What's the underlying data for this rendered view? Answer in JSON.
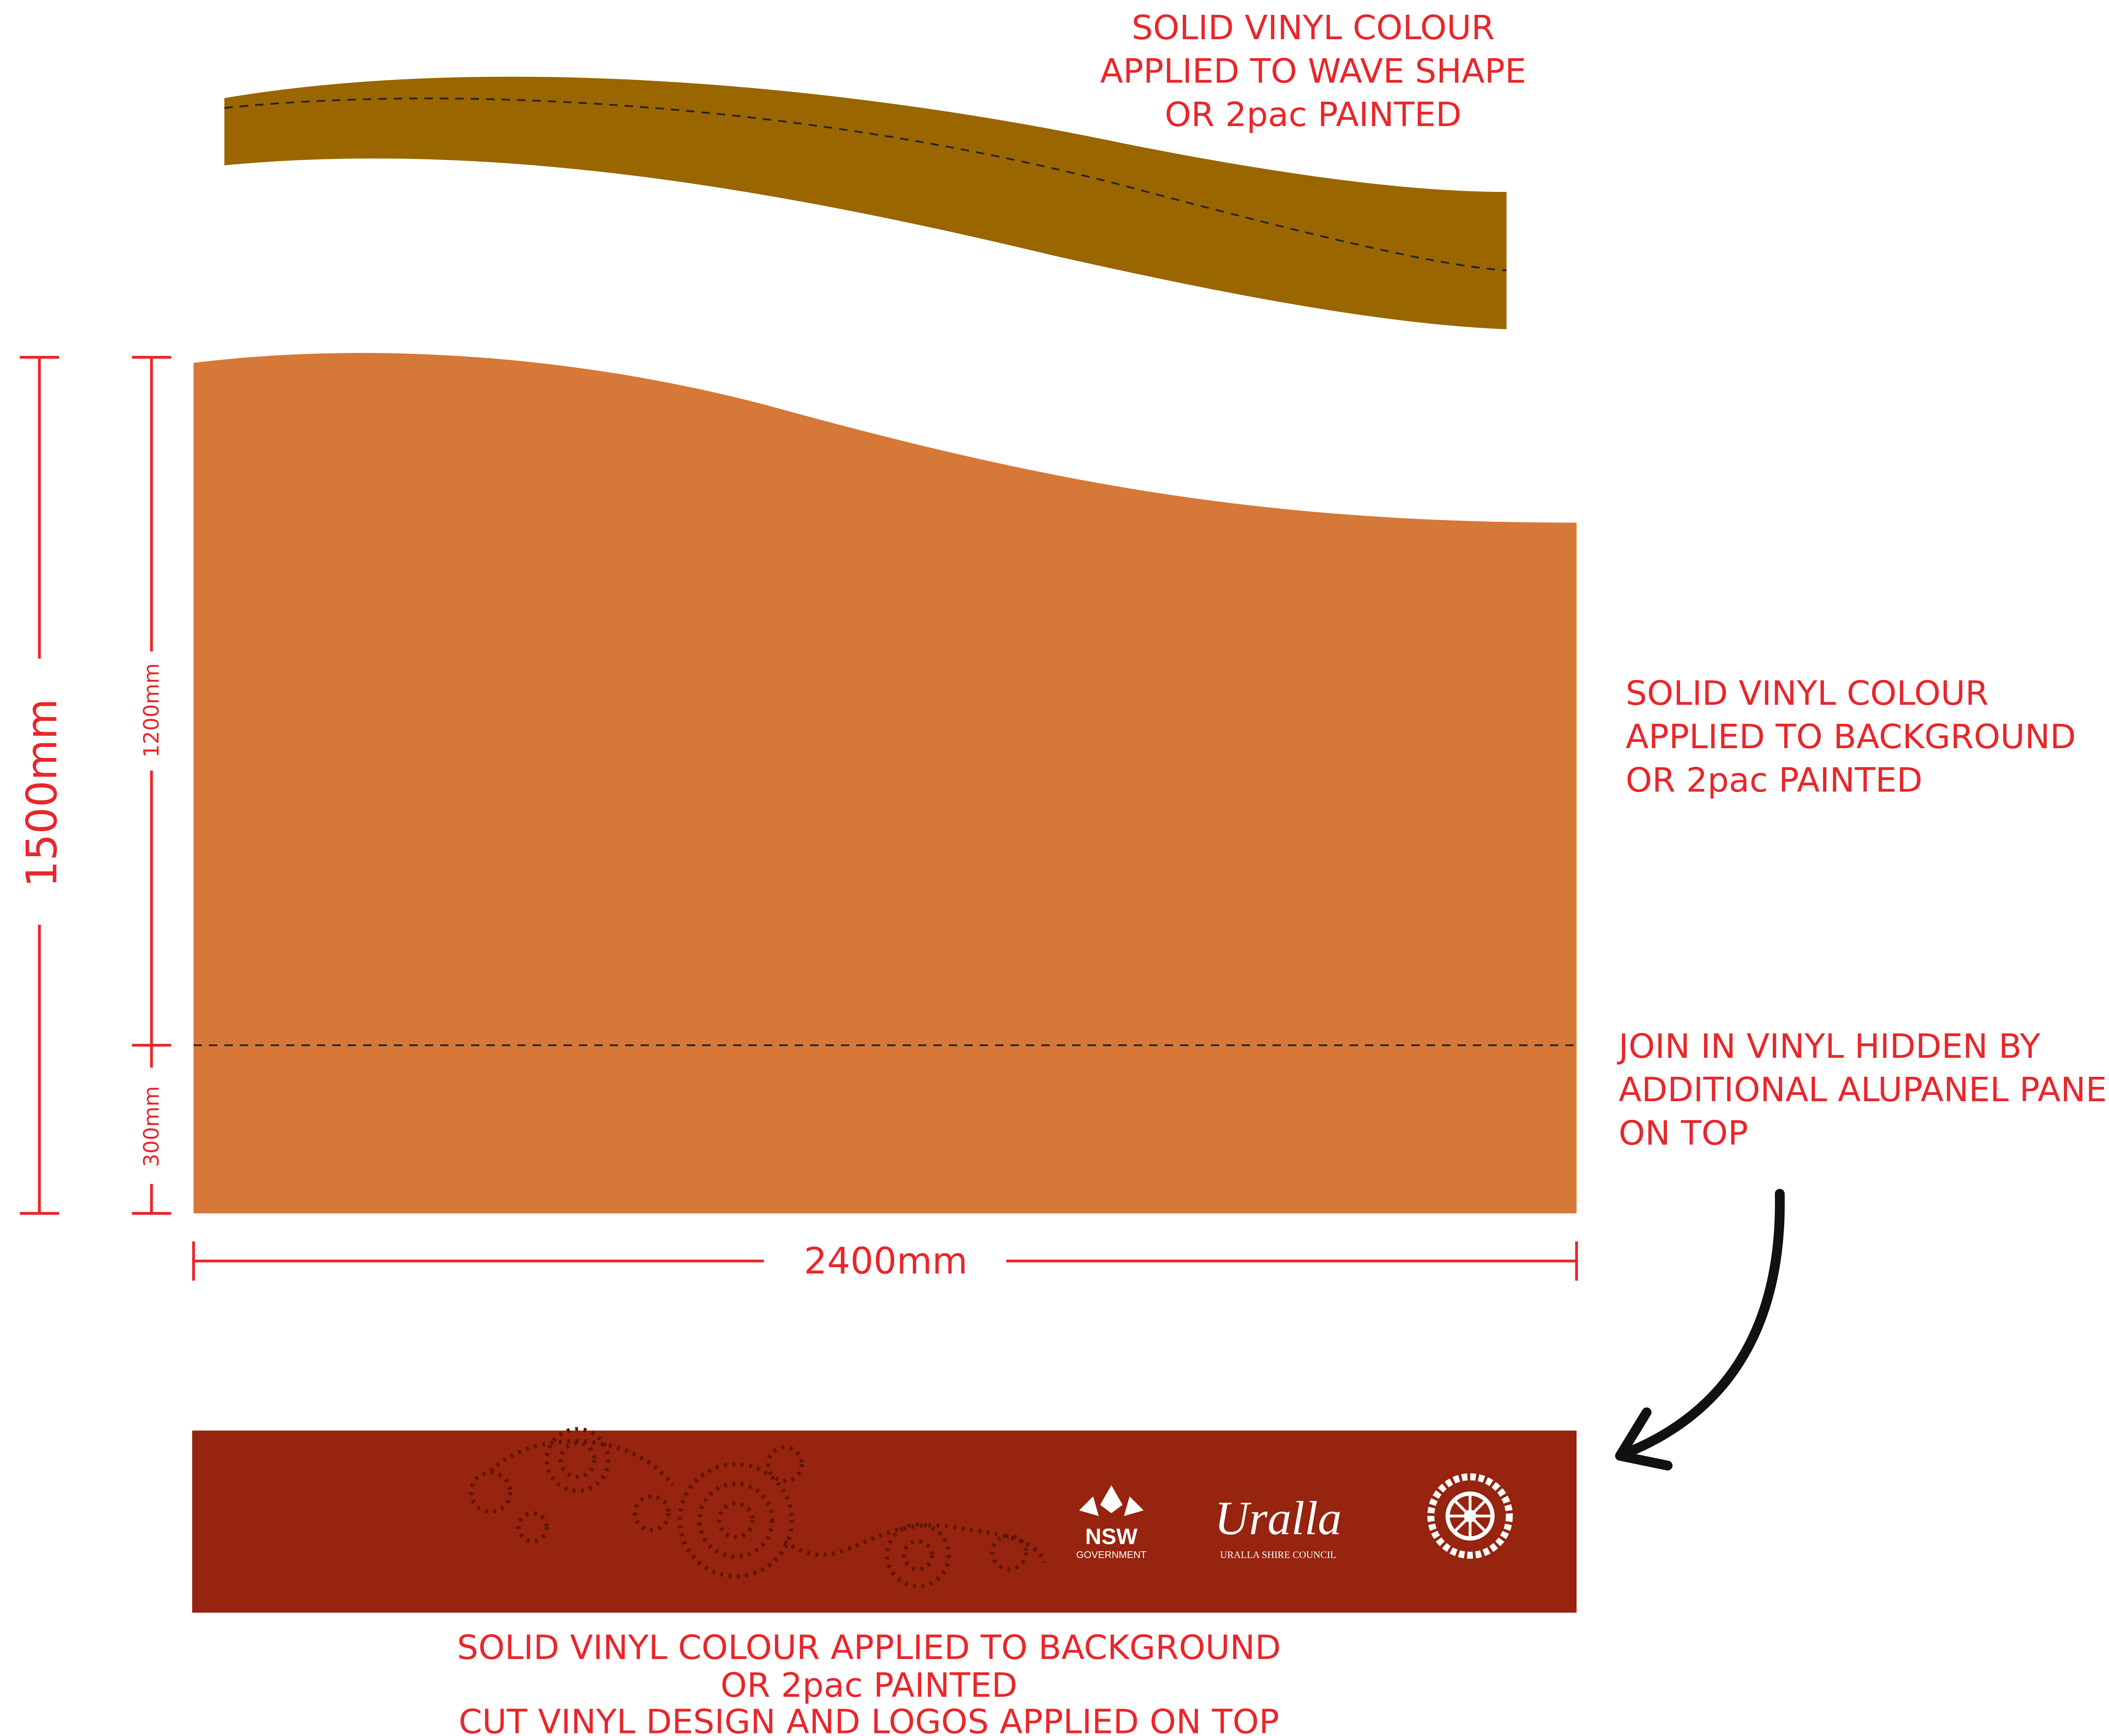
{
  "annotations": {
    "wave_shape": [
      "SOLID VINYL COLOUR",
      "APPLIED TO WAVE SHAPE",
      "OR 2pac PAINTED"
    ],
    "background": [
      "SOLID VINYL COLOUR",
      "APPLIED TO BACKGROUND",
      "OR 2pac PAINTED"
    ],
    "join": [
      "JOIN IN VINYL HIDDEN BY",
      "ADDITIONAL ALUPANEL PANEL",
      "ON TOP"
    ],
    "bottom_panel": [
      "SOLID VINYL COLOUR APPLIED TO BACKGROUND",
      "OR 2pac PAINTED",
      "CUT VINYL DESIGN AND LOGOS APPLIED ON TOP"
    ]
  },
  "dimensions": {
    "height_total": "1500mm",
    "height_upper": "1200mm",
    "height_lower": "300mm",
    "width": "2400mm"
  },
  "logos": {
    "nsw": "NSW",
    "nsw_sub": "GOVERNMENT",
    "uralla": "Uralla",
    "uralla_sub": "URALLA SHIRE COUNCIL"
  }
}
